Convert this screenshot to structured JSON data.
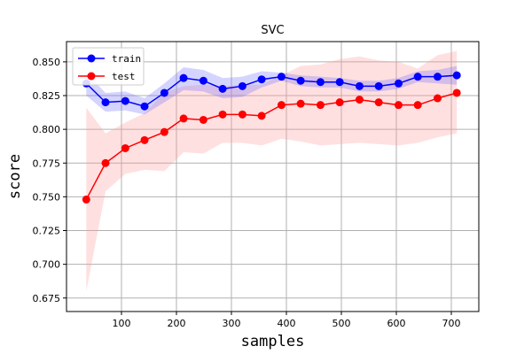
{
  "chart_data": {
    "type": "line",
    "title": "SVC",
    "xlabel": "samples",
    "ylabel": "score",
    "xlim": [
      0,
      750
    ],
    "ylim": [
      0.665,
      0.865
    ],
    "xticks": [
      "100",
      "200",
      "300",
      "400",
      "500",
      "600",
      "700"
    ],
    "yticks": [
      "0.675",
      "0.700",
      "0.725",
      "0.750",
      "0.775",
      "0.800",
      "0.825",
      "0.850"
    ],
    "grid": true,
    "legend_position": "top-left",
    "x": [
      36,
      71,
      107,
      142,
      178,
      213,
      249,
      284,
      320,
      355,
      391,
      426,
      462,
      497,
      533,
      568,
      604,
      639,
      675,
      710
    ],
    "series": [
      {
        "name": "train",
        "color": "#0000ff",
        "band_color": "#6666ff",
        "values": [
          0.834,
          0.82,
          0.821,
          0.817,
          0.827,
          0.838,
          0.836,
          0.83,
          0.832,
          0.837,
          0.839,
          0.836,
          0.835,
          0.835,
          0.832,
          0.832,
          0.834,
          0.839,
          0.839,
          0.84
        ],
        "upper": [
          0.842,
          0.827,
          0.828,
          0.823,
          0.834,
          0.846,
          0.844,
          0.838,
          0.839,
          0.843,
          0.842,
          0.84,
          0.839,
          0.838,
          0.836,
          0.836,
          0.838,
          0.843,
          0.844,
          0.847
        ],
        "lower": [
          0.825,
          0.813,
          0.814,
          0.811,
          0.82,
          0.829,
          0.828,
          0.823,
          0.824,
          0.831,
          0.836,
          0.832,
          0.831,
          0.831,
          0.828,
          0.828,
          0.83,
          0.835,
          0.834,
          0.833
        ]
      },
      {
        "name": "test",
        "color": "#ff0000",
        "band_color": "#ff9999",
        "values": [
          0.748,
          0.775,
          0.786,
          0.792,
          0.798,
          0.808,
          0.807,
          0.811,
          0.811,
          0.81,
          0.818,
          0.819,
          0.818,
          0.82,
          0.822,
          0.82,
          0.818,
          0.818,
          0.823,
          0.827
        ],
        "upper": [
          0.816,
          0.797,
          0.805,
          0.812,
          0.827,
          0.832,
          0.833,
          0.832,
          0.833,
          0.833,
          0.84,
          0.847,
          0.848,
          0.852,
          0.854,
          0.851,
          0.85,
          0.845,
          0.855,
          0.858
        ],
        "lower": [
          0.68,
          0.754,
          0.767,
          0.77,
          0.769,
          0.783,
          0.782,
          0.79,
          0.79,
          0.788,
          0.793,
          0.791,
          0.788,
          0.789,
          0.79,
          0.789,
          0.788,
          0.79,
          0.794,
          0.797
        ]
      }
    ]
  }
}
